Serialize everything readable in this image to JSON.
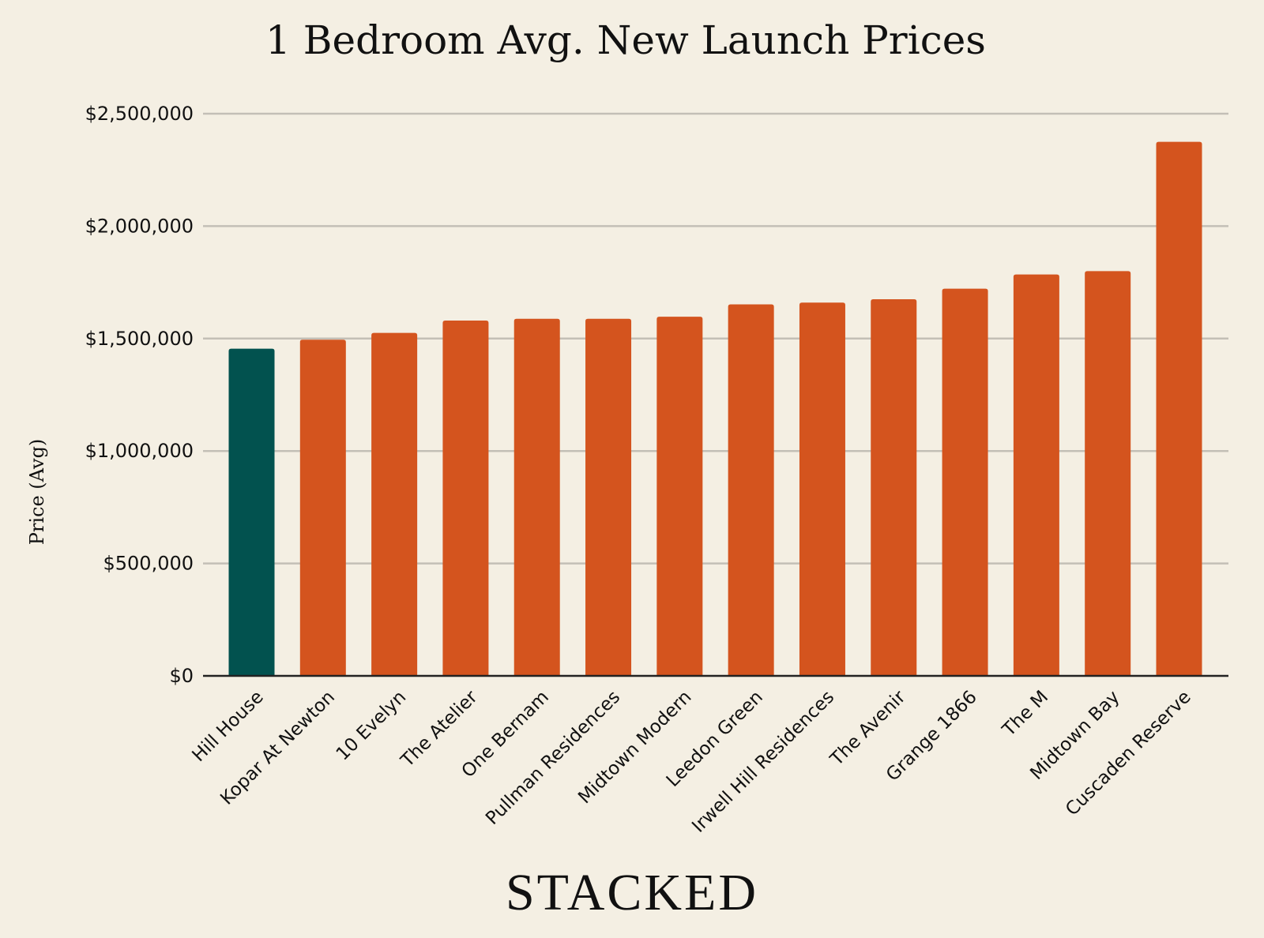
{
  "chart_data": {
    "type": "bar",
    "title": "1 Bedroom Avg. New Launch Prices",
    "xlabel": "",
    "ylabel": "Price (Avg)",
    "ylim": [
      0,
      2500000
    ],
    "yticks": [
      0,
      500000,
      1000000,
      1500000,
      2000000,
      2500000
    ],
    "ytick_labels": [
      "$0",
      "$500,000",
      "$1,000,000",
      "$1,500,000",
      "$2,000,000",
      "$2,500,000"
    ],
    "grid": true,
    "legend": "none",
    "categories": [
      "Hill House",
      "Kopar At Newton",
      "10 Evelyn",
      "The Atelier",
      "One Bernam",
      "Pullman Residences",
      "Midtown Modern",
      "Leedon Green",
      "Irwell Hill Residences",
      "The Avenir",
      "Grange 1866",
      "The M",
      "Midtown Bay",
      "Cuscaden Reserve"
    ],
    "values": [
      1455000,
      1495000,
      1525000,
      1580000,
      1588000,
      1588000,
      1597000,
      1652000,
      1660000,
      1675000,
      1722000,
      1785000,
      1800000,
      2375000
    ],
    "highlight_index": 0,
    "colors": {
      "bar": "#d4541e",
      "highlight": "#02524f",
      "grid": "#c3bfb6",
      "axis": "#222222",
      "background": "#f4efe3"
    }
  },
  "brand": {
    "name": "STACKED"
  }
}
